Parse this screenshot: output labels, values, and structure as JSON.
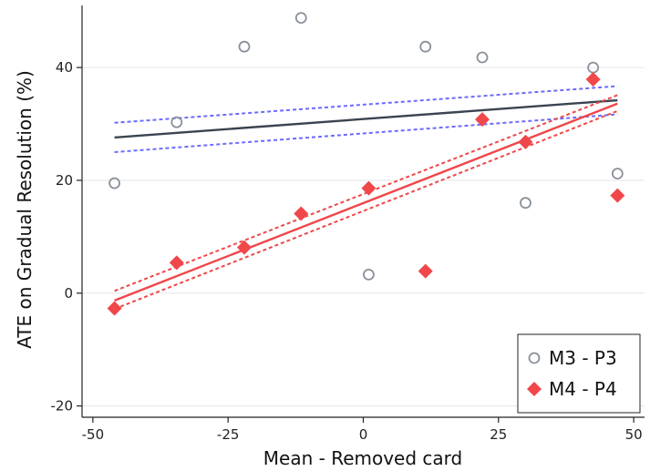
{
  "chart_data": {
    "type": "scatter",
    "title": "",
    "xlabel": "Mean - Removed card",
    "ylabel": "ATE on Gradual Resolution (%)",
    "xlim": [
      -52,
      52
    ],
    "ylim": [
      -22,
      51
    ],
    "x_ticks": [
      {
        "value": -50,
        "label": "-50"
      },
      {
        "value": -25,
        "label": "-25"
      },
      {
        "value": 0,
        "label": "0"
      },
      {
        "value": 25,
        "label": "25"
      },
      {
        "value": 50,
        "label": "50"
      }
    ],
    "y_ticks": [
      {
        "value": -20,
        "label": "-20"
      },
      {
        "value": 0,
        "label": "0"
      },
      {
        "value": 20,
        "label": "20"
      },
      {
        "value": 40,
        "label": "40"
      }
    ],
    "grid": "horizontal",
    "legend_position": "bottom-right",
    "series": [
      {
        "name": "M3 - P3",
        "marker": "hollow-circle",
        "color": "#8a919b",
        "points": [
          {
            "x": -46,
            "y": 19.5
          },
          {
            "x": -34.5,
            "y": 30.3
          },
          {
            "x": -22,
            "y": 43.7
          },
          {
            "x": -11.5,
            "y": 48.8
          },
          {
            "x": 1,
            "y": 3.3
          },
          {
            "x": 11.5,
            "y": 43.7
          },
          {
            "x": 22,
            "y": 41.8
          },
          {
            "x": 30,
            "y": 16
          },
          {
            "x": 42.5,
            "y": 40
          },
          {
            "x": 47,
            "y": 21.2
          }
        ],
        "fit_line": {
          "x": [
            -46,
            47
          ],
          "y": [
            27.6,
            34.2
          ],
          "color": "#3a4450"
        },
        "ci_lower": {
          "x": [
            -46,
            47
          ],
          "y": [
            25,
            31.7
          ],
          "color": "#6b6bff"
        },
        "ci_upper": {
          "x": [
            -46,
            47
          ],
          "y": [
            30.2,
            36.7
          ],
          "color": "#6b6bff"
        }
      },
      {
        "name": "M4 - P4",
        "marker": "filled-diamond",
        "color": "#f0474a",
        "points": [
          {
            "x": -46,
            "y": -2.7
          },
          {
            "x": -34.5,
            "y": 5.4
          },
          {
            "x": -22,
            "y": 8.1
          },
          {
            "x": -11.5,
            "y": 14.1
          },
          {
            "x": 1,
            "y": 18.6
          },
          {
            "x": 11.5,
            "y": 3.9
          },
          {
            "x": 22,
            "y": 30.8
          },
          {
            "x": 30,
            "y": 26.8
          },
          {
            "x": 42.5,
            "y": 37.9
          },
          {
            "x": 47,
            "y": 17.3
          }
        ],
        "fit_line": {
          "x": [
            -46,
            47
          ],
          "y": [
            -1.3,
            33.6
          ],
          "color": "#f0474a"
        },
        "ci_lower": {
          "x": [
            -46,
            47
          ],
          "y": [
            -2.8,
            32.3
          ],
          "color": "#f0474a"
        },
        "ci_upper": {
          "x": [
            -46,
            47
          ],
          "y": [
            0.4,
            35.1
          ],
          "color": "#f0474a"
        }
      }
    ]
  }
}
